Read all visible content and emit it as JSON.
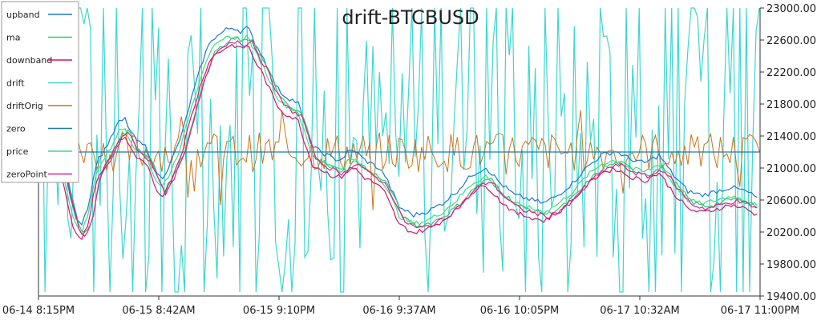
{
  "chart_data": {
    "type": "line",
    "title": "drift-BTCBUSD",
    "ylim": [
      19400,
      23000
    ],
    "y_axis_side": "right",
    "y_ticks": [
      "23000.00",
      "22600.00",
      "22200.00",
      "21800.00",
      "21400.00",
      "21000.00",
      "20600.00",
      "20200.00",
      "19800.00",
      "19400.00"
    ],
    "x_ticks": [
      "06-14 8:15PM",
      "06-15 8:42AM",
      "06-15 9:10PM",
      "06-16 9:37AM",
      "06-16 10:05PM",
      "06-17 10:32AM",
      "06-17 11:00PM"
    ],
    "legend_position": "top-left",
    "grid": false,
    "series": [
      {
        "name": "upband",
        "color": "#1f77d4"
      },
      {
        "name": "ma",
        "color": "#2ecc71"
      },
      {
        "name": "downband",
        "color": "#d6156b"
      },
      {
        "name": "drift",
        "color": "#3dd6d0"
      },
      {
        "name": "driftOrig",
        "color": "#c8741a"
      },
      {
        "name": "zero",
        "color": "#1f77b4",
        "value": 21200
      },
      {
        "name": "price",
        "color": "#3ddc84"
      },
      {
        "name": "zeroPoint",
        "color": "#e0208c"
      }
    ],
    "price_path": {
      "x": [
        0,
        4,
        6,
        8,
        10,
        12,
        14,
        16,
        18,
        20,
        22,
        24,
        26,
        28,
        30,
        32,
        34,
        36,
        38,
        40,
        42,
        44,
        46,
        48,
        50,
        52,
        54,
        56,
        58,
        60,
        62,
        64,
        66,
        68,
        70,
        72,
        74,
        76,
        78,
        80,
        82,
        84,
        86,
        88,
        90,
        92,
        94,
        96,
        98,
        100,
        104,
        108,
        112,
        116,
        120,
        124,
        128,
        132,
        136,
        140,
        144,
        148,
        152,
        156,
        160,
        164,
        168,
        172,
        176,
        180,
        184,
        188,
        192,
        196,
        200
      ],
      "y": [
        21200,
        21180,
        21100,
        20700,
        20300,
        20200,
        20450,
        20950,
        21100,
        21250,
        21450,
        21500,
        21300,
        21200,
        21150,
        20900,
        20750,
        20900,
        21100,
        21350,
        21700,
        22000,
        22300,
        22500,
        22550,
        22620,
        22650,
        22600,
        22650,
        22450,
        22300,
        22100,
        21900,
        21800,
        21750,
        21700,
        21400,
        21150,
        21100,
        21050,
        21000,
        21000,
        21100,
        21100,
        21000,
        20950,
        20900,
        20800,
        20600,
        20400,
        20300,
        20350,
        20450,
        20600,
        20800,
        20900,
        20700,
        20550,
        20500,
        20450,
        20550,
        20700,
        20900,
        21050,
        21100,
        21000,
        20950,
        21050,
        20800,
        20600,
        20550,
        20600,
        20650,
        20600,
        20500
      ]
    }
  }
}
